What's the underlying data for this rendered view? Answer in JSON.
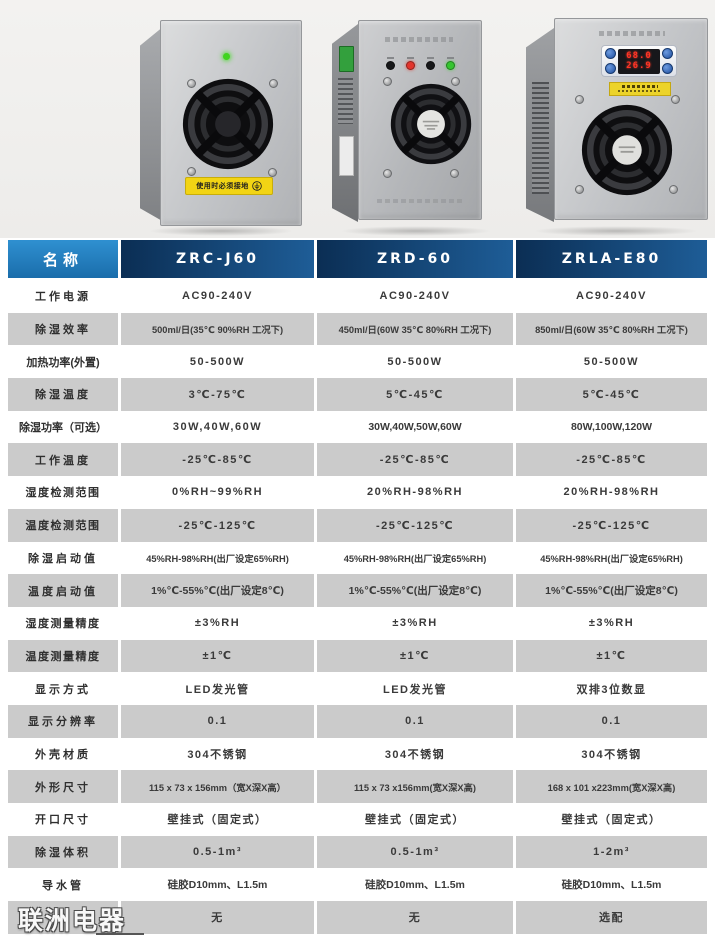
{
  "watermark": "联洲电器",
  "devices": [
    {
      "model": "ZRC-J60",
      "ground_label": "使用时必须接地"
    },
    {
      "model": "ZRD-60"
    },
    {
      "model": "ZRLA-E80",
      "display": {
        "row1": "68.0",
        "row2": "26.9"
      }
    }
  ],
  "table": {
    "name_header": "名称",
    "models": [
      "ZRC-J60",
      "ZRD-60",
      "ZRLA-E80"
    ],
    "rows": [
      {
        "label": "工作电源",
        "values": [
          "AC90-240V",
          "AC90-240V",
          "AC90-240V"
        ]
      },
      {
        "label": "除湿效率",
        "values": [
          "500ml/日(35℃ 90%RH 工况下)",
          "450ml/日(60W 35℃ 80%RH 工况下)",
          "850ml/日(60W 35℃ 80%RH 工况下)"
        ]
      },
      {
        "label": "加热功率(外置)",
        "values": [
          "50-500W",
          "50-500W",
          "50-500W"
        ]
      },
      {
        "label": "除湿温度",
        "values": [
          "3℃-75℃",
          "5℃-45℃",
          "5℃-45℃"
        ]
      },
      {
        "label": "除湿功率（可选）",
        "values": [
          "30W,40W,60W",
          "30W,40W,50W,60W",
          "80W,100W,120W"
        ]
      },
      {
        "label": "工作温度",
        "values": [
          "-25℃-85℃",
          "-25℃-85℃",
          "-25℃-85℃"
        ]
      },
      {
        "label": "湿度检测范围",
        "values": [
          "0%RH~99%RH",
          "20%RH-98%RH",
          "20%RH-98%RH"
        ]
      },
      {
        "label": "温度检测范围",
        "values": [
          "-25℃-125℃",
          "-25℃-125℃",
          "-25℃-125℃"
        ]
      },
      {
        "label": "除湿启动值",
        "values": [
          "45%RH-98%RH(出厂设定65%RH)",
          "45%RH-98%RH(出厂设定65%RH)",
          "45%RH-98%RH(出厂设定65%RH)"
        ]
      },
      {
        "label": "温度启动值",
        "values": [
          "1%℃-55%℃(出厂设定8℃)",
          "1%℃-55%℃(出厂设定8℃)",
          "1%℃-55%℃(出厂设定8℃)"
        ]
      },
      {
        "label": "湿度测量精度",
        "values": [
          "±3%RH",
          "±3%RH",
          "±3%RH"
        ]
      },
      {
        "label": "温度测量精度",
        "values": [
          "±1℃",
          "±1℃",
          "±1℃"
        ]
      },
      {
        "label": "显示方式",
        "values": [
          "LED发光管",
          "LED发光管",
          "双排3位数显"
        ]
      },
      {
        "label": "显示分辨率",
        "values": [
          "0.1",
          "0.1",
          "0.1"
        ]
      },
      {
        "label": "外壳材质",
        "values": [
          "304不锈钢",
          "304不锈钢",
          "304不锈钢"
        ]
      },
      {
        "label": "外形尺寸",
        "values": [
          "115 x 73 x 156mm（宽X深X高）",
          "115 x 73 x156mm(宽X深X高)",
          "168 x 101 x223mm(宽X深X高)"
        ]
      },
      {
        "label": "开口尺寸",
        "values": [
          "壁挂式（固定式）",
          "壁挂式（固定式）",
          "壁挂式（固定式）"
        ]
      },
      {
        "label": "除湿体积",
        "values": [
          "0.5-1m³",
          "0.5-1m³",
          "1-2m³"
        ]
      },
      {
        "label": "导水管",
        "values": [
          "硅胶D10mm、L1.5m",
          "硅胶D10mm、L1.5m",
          "硅胶D10mm、L1.5m"
        ]
      },
      {
        "label": "",
        "values": [
          "无",
          "无",
          "选配"
        ]
      }
    ]
  },
  "colors": {
    "header_name_blue": "#2f90d1",
    "header_model_navy": "#0b2e54",
    "row_gray": "#cbcbcb",
    "warning_yellow": "#f2d414"
  }
}
